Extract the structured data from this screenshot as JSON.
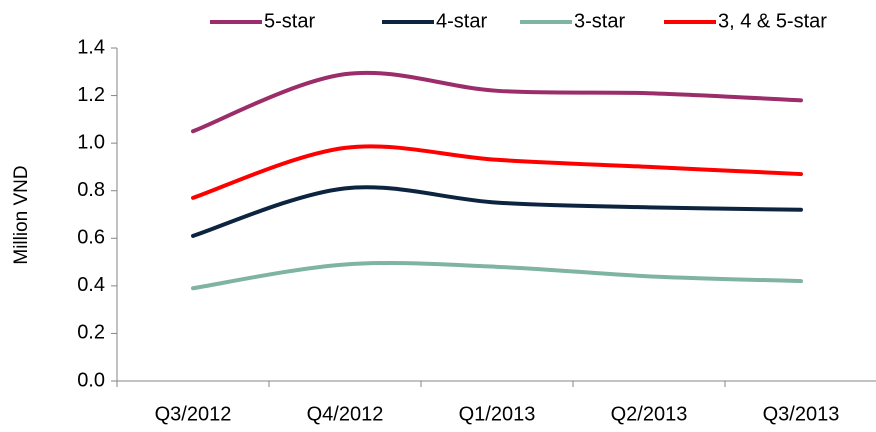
{
  "chart_data": {
    "type": "line",
    "y_label": "Million VND",
    "categories": [
      "Q3/2012",
      "Q4/2012",
      "Q1/2013",
      "Q2/2013",
      "Q3/2013"
    ],
    "series": [
      {
        "name": "5-star",
        "color": "#9b2d6a",
        "values": [
          1.05,
          1.29,
          1.22,
          1.21,
          1.18
        ]
      },
      {
        "name": "4-star",
        "color": "#0d2440",
        "values": [
          0.61,
          0.81,
          0.75,
          0.73,
          0.72
        ]
      },
      {
        "name": "3-star",
        "color": "#7fb3a4",
        "values": [
          0.39,
          0.49,
          0.48,
          0.44,
          0.42
        ]
      },
      {
        "name": "3, 4 & 5-star",
        "color": "#ff0000",
        "values": [
          0.77,
          0.98,
          0.93,
          0.9,
          0.87
        ]
      }
    ],
    "ylim": [
      0,
      1.4
    ],
    "yticks": [
      {
        "value": 0,
        "label": "0.0"
      },
      0.2,
      0.4,
      0.6,
      0.8,
      {
        "value": 1,
        "label": "1.0"
      },
      1.2,
      1.4
    ],
    "smooth": true,
    "legend": "top"
  }
}
